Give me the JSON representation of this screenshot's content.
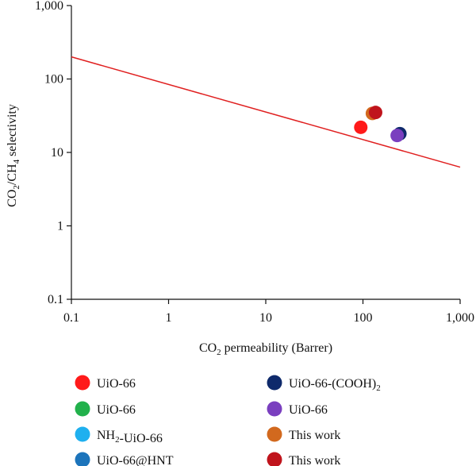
{
  "chart_data": {
    "type": "scatter",
    "xlabel": "CO2 permeability (Barrer)",
    "ylabel": "CO2/CH4 selectivity",
    "xscale": "log",
    "yscale": "log",
    "xlim": [
      0.1,
      1000
    ],
    "ylim": [
      0.1,
      1000
    ],
    "x_ticks": [
      0.1,
      1,
      10,
      100,
      1000
    ],
    "x_tick_labels": [
      "0.1",
      "1",
      "10",
      "100",
      "1,000"
    ],
    "y_ticks": [
      0.1,
      1,
      10,
      100,
      1000
    ],
    "y_tick_labels": [
      "0.1",
      "1",
      "10",
      "100",
      "1,000"
    ],
    "grid": false,
    "legend_position": "bottom",
    "upper_bound_line": {
      "color": "#e02020",
      "points": [
        [
          0.1,
          200
        ],
        [
          1000,
          6.3
        ]
      ]
    },
    "series": [
      {
        "name": "UiO-66",
        "color": "#ff1a1a",
        "points": [
          [
            95,
            22
          ]
        ]
      },
      {
        "name": "UiO-66",
        "color": "#22b14c",
        "points": []
      },
      {
        "name": "NH2-UiO-66",
        "color": "#1fb0ef",
        "points": []
      },
      {
        "name": "UiO-66@HNT",
        "color": "#1c74bb",
        "points": []
      },
      {
        "name": "UiO-66-(COOH)2",
        "color": "#0f2a6b",
        "points": [
          [
            240,
            18
          ]
        ]
      },
      {
        "name": "UiO-66",
        "color": "#7a3fbf",
        "points": [
          [
            225,
            17
          ]
        ]
      },
      {
        "name": "This work",
        "color": "#d2691e",
        "points": [
          [
            125,
            34
          ]
        ]
      },
      {
        "name": "This work",
        "color": "#c0141c",
        "points": [
          [
            135,
            35
          ]
        ]
      }
    ]
  }
}
